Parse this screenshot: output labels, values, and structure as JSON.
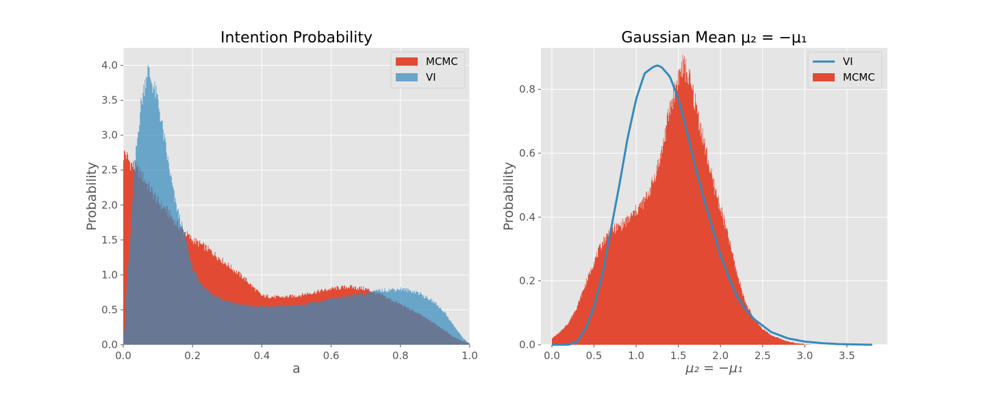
{
  "chart_data": [
    {
      "type": "bar",
      "subtype": "overlaid-histogram",
      "title": "Intention Probability",
      "xlabel": "a",
      "ylabel": "Probability",
      "xlim": [
        0.0,
        1.0
      ],
      "ylim": [
        0.0,
        4.25
      ],
      "xticks": [
        "0.0",
        "0.2",
        "0.4",
        "0.6",
        "0.8",
        "1.0"
      ],
      "yticks": [
        "0.0",
        "0.5",
        "1.0",
        "1.5",
        "2.0",
        "2.5",
        "3.0",
        "3.5",
        "4.0"
      ],
      "grid": true,
      "legend_position": "top-right",
      "x": [
        0.0,
        0.005,
        0.01,
        0.02,
        0.03,
        0.05,
        0.07,
        0.1,
        0.13,
        0.15,
        0.18,
        0.2,
        0.22,
        0.25,
        0.3,
        0.35,
        0.4,
        0.45,
        0.5,
        0.55,
        0.6,
        0.65,
        0.7,
        0.75,
        0.8,
        0.85,
        0.9,
        0.93,
        0.95,
        0.98,
        1.0
      ],
      "series": [
        {
          "name": "MCMC",
          "color": "#E24A33",
          "values": [
            2.7,
            2.75,
            2.7,
            2.6,
            2.55,
            2.45,
            2.3,
            2.05,
            1.9,
            1.75,
            1.6,
            1.5,
            1.45,
            1.35,
            1.15,
            0.95,
            0.7,
            0.68,
            0.7,
            0.75,
            0.8,
            0.83,
            0.8,
            0.7,
            0.58,
            0.45,
            0.3,
            0.2,
            0.12,
            0.05,
            0.02
          ]
        },
        {
          "name": "VI",
          "color": "#348ABD",
          "values": [
            0.05,
            0.3,
            0.8,
            1.5,
            2.4,
            3.4,
            3.95,
            3.5,
            2.6,
            2.05,
            1.5,
            1.1,
            0.9,
            0.75,
            0.62,
            0.56,
            0.55,
            0.55,
            0.57,
            0.6,
            0.65,
            0.7,
            0.74,
            0.78,
            0.8,
            0.75,
            0.6,
            0.45,
            0.3,
            0.1,
            0.01
          ]
        }
      ]
    },
    {
      "type": "bar",
      "subtype": "histogram-with-line",
      "title": "Gaussian Mean μ₂ = −μ₁",
      "xlabel": "μ₂ = −μ₁",
      "ylabel": "Probability",
      "xlim": [
        -0.13,
        3.98
      ],
      "ylim": [
        0.0,
        0.93
      ],
      "xticks": [
        "0.0",
        "0.5",
        "1.0",
        "1.5",
        "2.0",
        "2.5",
        "3.0",
        "3.5"
      ],
      "yticks": [
        "0.0",
        "0.2",
        "0.4",
        "0.6",
        "0.8"
      ],
      "grid": true,
      "legend_position": "top-right",
      "series": [
        {
          "name": "VI",
          "type": "line",
          "color": "#348ABD",
          "x": [
            0.0,
            0.2,
            0.3,
            0.4,
            0.5,
            0.6,
            0.7,
            0.8,
            0.9,
            1.0,
            1.1,
            1.2,
            1.25,
            1.3,
            1.4,
            1.5,
            1.6,
            1.7,
            1.8,
            1.9,
            2.0,
            2.1,
            2.2,
            2.3,
            2.4,
            2.5,
            2.6,
            2.8,
            3.0,
            3.2,
            3.4,
            3.6,
            3.8
          ],
          "y": [
            0.0,
            0.0,
            0.01,
            0.05,
            0.12,
            0.22,
            0.36,
            0.5,
            0.65,
            0.77,
            0.85,
            0.87,
            0.875,
            0.87,
            0.84,
            0.77,
            0.67,
            0.56,
            0.46,
            0.37,
            0.28,
            0.21,
            0.15,
            0.11,
            0.08,
            0.06,
            0.04,
            0.02,
            0.01,
            0.005,
            0.002,
            0.001,
            0.0
          ]
        },
        {
          "name": "MCMC",
          "type": "histogram",
          "color": "#E24A33",
          "x": [
            0.0,
            0.05,
            0.1,
            0.2,
            0.3,
            0.4,
            0.5,
            0.6,
            0.7,
            0.8,
            0.9,
            1.0,
            1.1,
            1.2,
            1.3,
            1.4,
            1.5,
            1.55,
            1.6,
            1.7,
            1.8,
            1.9,
            2.0,
            2.1,
            2.2,
            2.3,
            2.4,
            2.5,
            2.6,
            2.7,
            2.8,
            2.9,
            3.0,
            3.1
          ],
          "y": [
            0.02,
            0.03,
            0.04,
            0.07,
            0.12,
            0.19,
            0.26,
            0.32,
            0.36,
            0.37,
            0.39,
            0.42,
            0.45,
            0.51,
            0.6,
            0.74,
            0.84,
            0.87,
            0.86,
            0.76,
            0.64,
            0.52,
            0.43,
            0.33,
            0.22,
            0.13,
            0.08,
            0.05,
            0.03,
            0.02,
            0.01,
            0.005,
            0.002,
            0.0
          ]
        }
      ]
    }
  ]
}
